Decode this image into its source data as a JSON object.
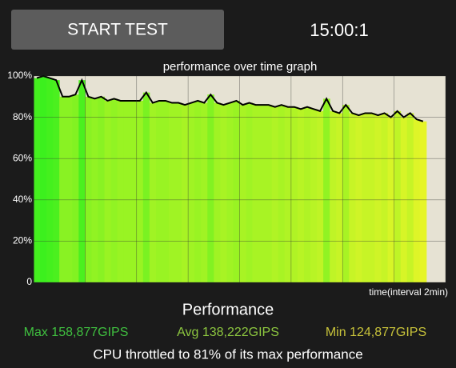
{
  "button": {
    "label": "START TEST"
  },
  "timer": "15:00:1",
  "chart_data": {
    "type": "area",
    "title": "performance over time graph",
    "x_label": "time(interval 2min)",
    "x": [
      0,
      0.25,
      0.5,
      0.75,
      1,
      1.25,
      1.5,
      1.75,
      2,
      2.25,
      2.5,
      2.75,
      3,
      3.25,
      3.5,
      3.75,
      4,
      4.25,
      4.5,
      4.75,
      5,
      5.25,
      5.5,
      5.75,
      6,
      6.25,
      6.5,
      6.75,
      7,
      7.25,
      7.5,
      7.75,
      8,
      8.25,
      8.5,
      8.75,
      9,
      9.25,
      9.5,
      9.75,
      10,
      10.25,
      10.5,
      10.75,
      11,
      11.25,
      11.5,
      11.75,
      12,
      12.25,
      12.5,
      12.75,
      13,
      13.25,
      13.5,
      13.75,
      14,
      14.25,
      14.5,
      14.75,
      15
    ],
    "series": [
      {
        "color": "#000000",
        "values": [
          99,
          100,
          99,
          98,
          90,
          90,
          91,
          98,
          90,
          89,
          90,
          88,
          89,
          88,
          88,
          88,
          88,
          92,
          87,
          88,
          88,
          87,
          87,
          86,
          87,
          88,
          87,
          91,
          87,
          86,
          87,
          88,
          86,
          87,
          86,
          86,
          86,
          85,
          86,
          85,
          85,
          84,
          85,
          84,
          83,
          89,
          83,
          82,
          86,
          82,
          81,
          82,
          82,
          81,
          82,
          80,
          83,
          80,
          82,
          79,
          78
        ]
      }
    ],
    "xlim": [
      0,
      16
    ],
    "xticks": [
      0,
      2,
      4,
      6,
      8,
      10,
      12,
      14,
      16
    ],
    "ylim": [
      0,
      100
    ],
    "yticks": [
      0,
      {
        "value": 20,
        "label": "20%"
      },
      {
        "value": 40,
        "label": "40%"
      },
      {
        "value": 60,
        "label": "60%"
      },
      {
        "value": 80,
        "label": "80%"
      },
      {
        "value": 100,
        "label": "100%"
      }
    ],
    "grid": true
  },
  "summary": {
    "heading": "Performance",
    "max": "Max 158,877GIPS",
    "avg": "Avg 138,222GIPS",
    "min": "Min 124,877GIPS",
    "note": "CPU throttled to 81% of its max performance"
  }
}
